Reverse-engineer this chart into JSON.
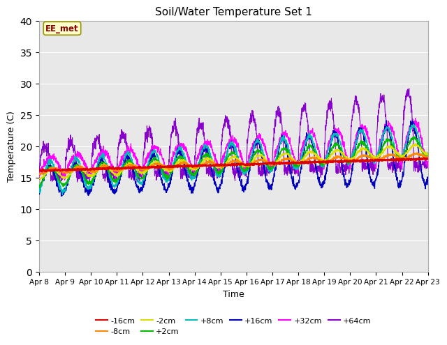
{
  "title": "Soil/Water Temperature Set 1",
  "xlabel": "Time",
  "ylabel": "Temperature (C)",
  "ylim": [
    0,
    40
  ],
  "yticks": [
    0,
    5,
    10,
    15,
    20,
    25,
    30,
    35,
    40
  ],
  "annotation_text": "EE_met",
  "annotation_bg": "#ffffcc",
  "annotation_border": "#999900",
  "annotation_text_color": "#880000",
  "plot_bg": "#e8e8e8",
  "series_colors": {
    "-16cm": "#dd0000",
    "-8cm": "#ff8800",
    "-2cm": "#dddd00",
    "+2cm": "#00bb00",
    "+8cm": "#00bbbb",
    "+16cm": "#0000bb",
    "+32cm": "#ff00ff",
    "+64cm": "#8800cc"
  },
  "legend_order": [
    "-16cm",
    "-8cm",
    "-2cm",
    "+2cm",
    "+8cm",
    "+16cm",
    "+32cm",
    "+64cm"
  ]
}
